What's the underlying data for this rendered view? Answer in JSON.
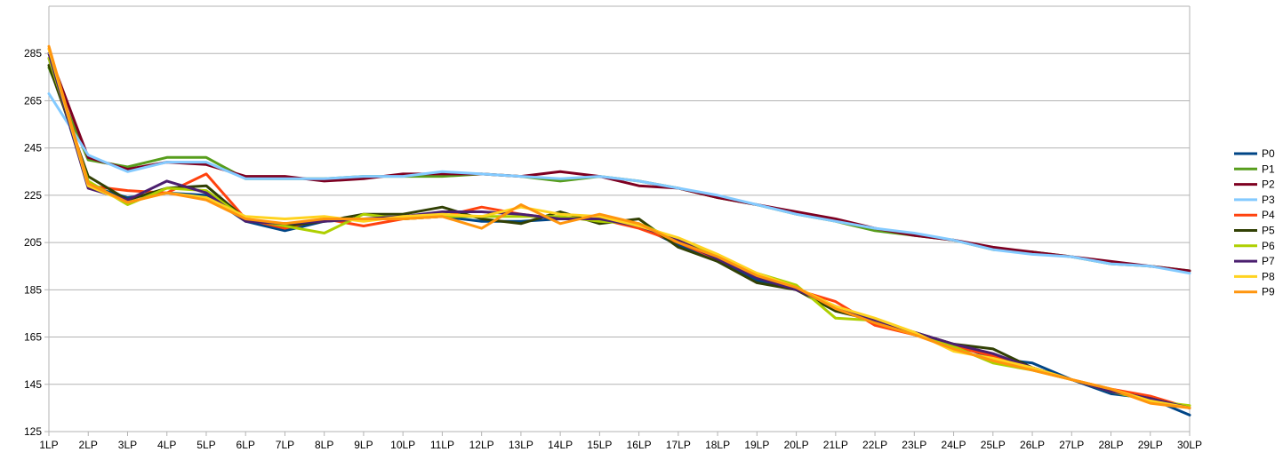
{
  "chart_data": {
    "type": "line",
    "title": "",
    "xlabel": "",
    "ylabel": "",
    "categories": [
      "1LP",
      "2LP",
      "3LP",
      "4LP",
      "5LP",
      "6LP",
      "7LP",
      "8LP",
      "9LP",
      "10LP",
      "11LP",
      "12LP",
      "13LP",
      "14LP",
      "15LP",
      "16LP",
      "17LP",
      "18LP",
      "19LP",
      "20LP",
      "21LP",
      "22LP",
      "23LP",
      "24LP",
      "25LP",
      "26LP",
      "27LP",
      "28LP",
      "29LP",
      "30LP"
    ],
    "ylim": [
      125,
      305
    ],
    "yticks": [
      125,
      145,
      165,
      185,
      205,
      225,
      245,
      265,
      285
    ],
    "grid": true,
    "legend": "right",
    "series": [
      {
        "name": "P0",
        "color": "#004586",
        "values": [
          283,
          229,
          224,
          226,
          225,
          214,
          210,
          214,
          215,
          215,
          216,
          214,
          214,
          215,
          215,
          212,
          204,
          197,
          189,
          185,
          177,
          171,
          166,
          162,
          156,
          154,
          147,
          141,
          139,
          132
        ]
      },
      {
        "name": "P1",
        "color": "#579d1c",
        "values": [
          279,
          240,
          237,
          241,
          241,
          232,
          232,
          232,
          233,
          233,
          233,
          234,
          233,
          231,
          233,
          231,
          228,
          224,
          221,
          217,
          214,
          210,
          208,
          206,
          202,
          201,
          199,
          196,
          195,
          193
        ]
      },
      {
        "name": "P2",
        "color": "#7e0021",
        "values": [
          285,
          241,
          236,
          239,
          238,
          233,
          233,
          231,
          232,
          234,
          234,
          234,
          233,
          235,
          233,
          229,
          228,
          224,
          221,
          218,
          215,
          211,
          208,
          206,
          203,
          201,
          199,
          197,
          195,
          193
        ]
      },
      {
        "name": "P3",
        "color": "#83caff",
        "values": [
          268,
          242,
          235,
          239,
          239,
          232,
          232,
          232,
          233,
          233,
          235,
          234,
          233,
          232,
          233,
          231,
          228,
          225,
          221,
          217,
          214,
          211,
          209,
          206,
          202,
          200,
          199,
          196,
          195,
          192
        ]
      },
      {
        "name": "P4",
        "color": "#ff420e",
        "values": [
          287,
          229,
          227,
          226,
          234,
          215,
          211,
          215,
          212,
          215,
          216,
          220,
          217,
          215,
          215,
          211,
          205,
          198,
          191,
          185,
          180,
          170,
          166,
          161,
          157,
          152,
          147,
          143,
          140,
          135
        ]
      },
      {
        "name": "P5",
        "color": "#314004",
        "values": [
          280,
          233,
          223,
          228,
          229,
          215,
          212,
          214,
          217,
          217,
          220,
          215,
          213,
          218,
          213,
          215,
          203,
          197,
          188,
          185,
          176,
          172,
          167,
          162,
          160,
          152,
          147,
          142,
          139,
          135
        ]
      },
      {
        "name": "P6",
        "color": "#aecf00",
        "values": [
          283,
          231,
          221,
          228,
          227,
          215,
          212,
          209,
          217,
          215,
          216,
          216,
          216,
          216,
          214,
          213,
          206,
          199,
          192,
          187,
          173,
          172,
          166,
          161,
          154,
          151,
          147,
          142,
          138,
          136
        ]
      },
      {
        "name": "P7",
        "color": "#4b1f6f",
        "values": [
          285,
          228,
          223,
          231,
          226,
          214,
          213,
          214,
          215,
          216,
          218,
          218,
          217,
          215,
          215,
          212,
          206,
          198,
          190,
          185,
          178,
          172,
          167,
          162,
          158,
          152,
          147,
          142,
          139,
          135
        ]
      },
      {
        "name": "P8",
        "color": "#ffd320",
        "values": [
          287,
          229,
          222,
          226,
          224,
          216,
          215,
          216,
          214,
          216,
          217,
          216,
          220,
          217,
          216,
          212,
          207,
          200,
          192,
          186,
          178,
          173,
          167,
          159,
          156,
          152,
          147,
          143,
          138,
          135
        ]
      },
      {
        "name": "P9",
        "color": "#ff950e",
        "values": [
          288,
          230,
          222,
          226,
          223,
          215,
          213,
          215,
          215,
          215,
          216,
          211,
          221,
          213,
          217,
          213,
          205,
          199,
          191,
          186,
          177,
          171,
          166,
          160,
          155,
          151,
          147,
          143,
          137,
          135
        ]
      }
    ]
  }
}
